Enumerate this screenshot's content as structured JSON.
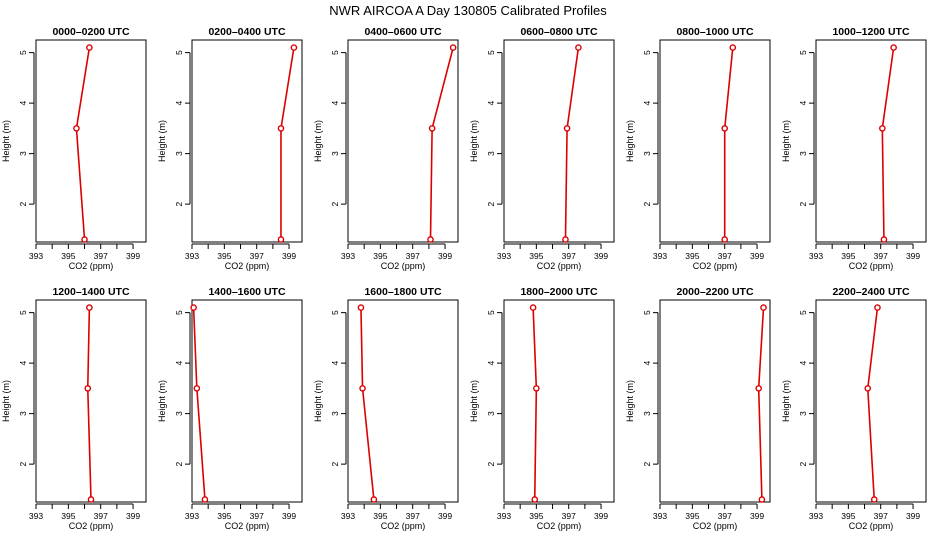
{
  "page_title": "NWR AIRCOA A  Day 130805  Calibrated Profiles",
  "colors": {
    "line": "#dd0000",
    "marker": "#dd0000",
    "axis": "#000000"
  },
  "chart_data": [
    {
      "type": "line",
      "title": "0000–0200 UTC",
      "xlabel": "CO2 (ppm)",
      "ylabel": "Height (m)",
      "xlim": [
        393,
        399.8
      ],
      "ylim": [
        1.25,
        5.25
      ],
      "xticks": [
        "393",
        "395",
        "397",
        "399"
      ],
      "yticks": [
        "2",
        "3",
        "4",
        "5"
      ],
      "x": [
        396.0,
        395.5,
        396.3
      ],
      "y": [
        1.3,
        3.5,
        5.1
      ]
    },
    {
      "type": "line",
      "title": "0200–0400 UTC",
      "xlabel": "CO2 (ppm)",
      "ylabel": "Height (m)",
      "xlim": [
        393,
        399.8
      ],
      "ylim": [
        1.25,
        5.25
      ],
      "xticks": [
        "393",
        "395",
        "397",
        "399"
      ],
      "yticks": [
        "2",
        "3",
        "4",
        "5"
      ],
      "x": [
        398.5,
        398.5,
        399.3
      ],
      "y": [
        1.3,
        3.5,
        5.1
      ]
    },
    {
      "type": "line",
      "title": "0400–0600 UTC",
      "xlabel": "CO2 (ppm)",
      "ylabel": "Height (m)",
      "xlim": [
        393,
        399.8
      ],
      "ylim": [
        1.25,
        5.25
      ],
      "xticks": [
        "393",
        "395",
        "397",
        "399"
      ],
      "yticks": [
        "2",
        "3",
        "4",
        "5"
      ],
      "x": [
        398.1,
        398.2,
        399.5
      ],
      "y": [
        1.3,
        3.5,
        5.1
      ]
    },
    {
      "type": "line",
      "title": "0600–0800 UTC",
      "xlabel": "CO2 (ppm)",
      "ylabel": "Height (m)",
      "xlim": [
        393,
        399.8
      ],
      "ylim": [
        1.25,
        5.25
      ],
      "xticks": [
        "393",
        "395",
        "397",
        "399"
      ],
      "yticks": [
        "2",
        "3",
        "4",
        "5"
      ],
      "x": [
        396.8,
        396.9,
        397.6
      ],
      "y": [
        1.3,
        3.5,
        5.1
      ]
    },
    {
      "type": "line",
      "title": "0800–1000 UTC",
      "xlabel": "CO2 (ppm)",
      "ylabel": "Height (m)",
      "xlim": [
        393,
        399.8
      ],
      "ylim": [
        1.25,
        5.25
      ],
      "xticks": [
        "393",
        "395",
        "397",
        "399"
      ],
      "yticks": [
        "2",
        "3",
        "4",
        "5"
      ],
      "x": [
        397.0,
        397.0,
        397.5
      ],
      "y": [
        1.3,
        3.5,
        5.1
      ]
    },
    {
      "type": "line",
      "title": "1000–1200 UTC",
      "xlabel": "CO2 (ppm)",
      "ylabel": "Height (m)",
      "xlim": [
        393,
        399.8
      ],
      "ylim": [
        1.25,
        5.25
      ],
      "xticks": [
        "393",
        "395",
        "397",
        "399"
      ],
      "yticks": [
        "2",
        "3",
        "4",
        "5"
      ],
      "x": [
        397.2,
        397.1,
        397.8
      ],
      "y": [
        1.3,
        3.5,
        5.1
      ]
    },
    {
      "type": "line",
      "title": "1200–1400 UTC",
      "xlabel": "CO2 (ppm)",
      "ylabel": "Height (m)",
      "xlim": [
        393,
        399.8
      ],
      "ylim": [
        1.25,
        5.25
      ],
      "xticks": [
        "393",
        "395",
        "397",
        "399"
      ],
      "yticks": [
        "2",
        "3",
        "4",
        "5"
      ],
      "x": [
        396.4,
        396.2,
        396.3
      ],
      "y": [
        1.3,
        3.5,
        5.1
      ]
    },
    {
      "type": "line",
      "title": "1400–1600 UTC",
      "xlabel": "CO2 (ppm)",
      "ylabel": "Height (m)",
      "xlim": [
        393,
        399.8
      ],
      "ylim": [
        1.25,
        5.25
      ],
      "xticks": [
        "393",
        "395",
        "397",
        "399"
      ],
      "yticks": [
        "2",
        "3",
        "4",
        "5"
      ],
      "x": [
        393.8,
        393.3,
        393.1
      ],
      "y": [
        1.3,
        3.5,
        5.1
      ]
    },
    {
      "type": "line",
      "title": "1600–1800 UTC",
      "xlabel": "CO2 (ppm)",
      "ylabel": "Height (m)",
      "xlim": [
        393,
        399.8
      ],
      "ylim": [
        1.25,
        5.25
      ],
      "xticks": [
        "393",
        "395",
        "397",
        "399"
      ],
      "yticks": [
        "2",
        "3",
        "4",
        "5"
      ],
      "x": [
        394.6,
        393.9,
        393.8
      ],
      "y": [
        1.3,
        3.5,
        5.1
      ]
    },
    {
      "type": "line",
      "title": "1800–2000 UTC",
      "xlabel": "CO2 (ppm)",
      "ylabel": "Height (m)",
      "xlim": [
        393,
        399.8
      ],
      "ylim": [
        1.25,
        5.25
      ],
      "xticks": [
        "393",
        "395",
        "397",
        "399"
      ],
      "yticks": [
        "2",
        "3",
        "4",
        "5"
      ],
      "x": [
        394.9,
        395.0,
        394.8
      ],
      "y": [
        1.3,
        3.5,
        5.1
      ]
    },
    {
      "type": "line",
      "title": "2000–2200 UTC",
      "xlabel": "CO2 (ppm)",
      "ylabel": "Height (m)",
      "xlim": [
        393,
        399.8
      ],
      "ylim": [
        1.25,
        5.25
      ],
      "xticks": [
        "393",
        "395",
        "397",
        "399"
      ],
      "yticks": [
        "2",
        "3",
        "4",
        "5"
      ],
      "x": [
        399.3,
        399.1,
        399.4
      ],
      "y": [
        1.3,
        3.5,
        5.1
      ]
    },
    {
      "type": "line",
      "title": "2200–2400 UTC",
      "xlabel": "CO2 (ppm)",
      "ylabel": "Height (m)",
      "xlim": [
        393,
        399.8
      ],
      "ylim": [
        1.25,
        5.25
      ],
      "xticks": [
        "393",
        "395",
        "397",
        "399"
      ],
      "yticks": [
        "2",
        "3",
        "4",
        "5"
      ],
      "x": [
        396.6,
        396.2,
        396.8
      ],
      "y": [
        1.3,
        3.5,
        5.1
      ]
    }
  ]
}
